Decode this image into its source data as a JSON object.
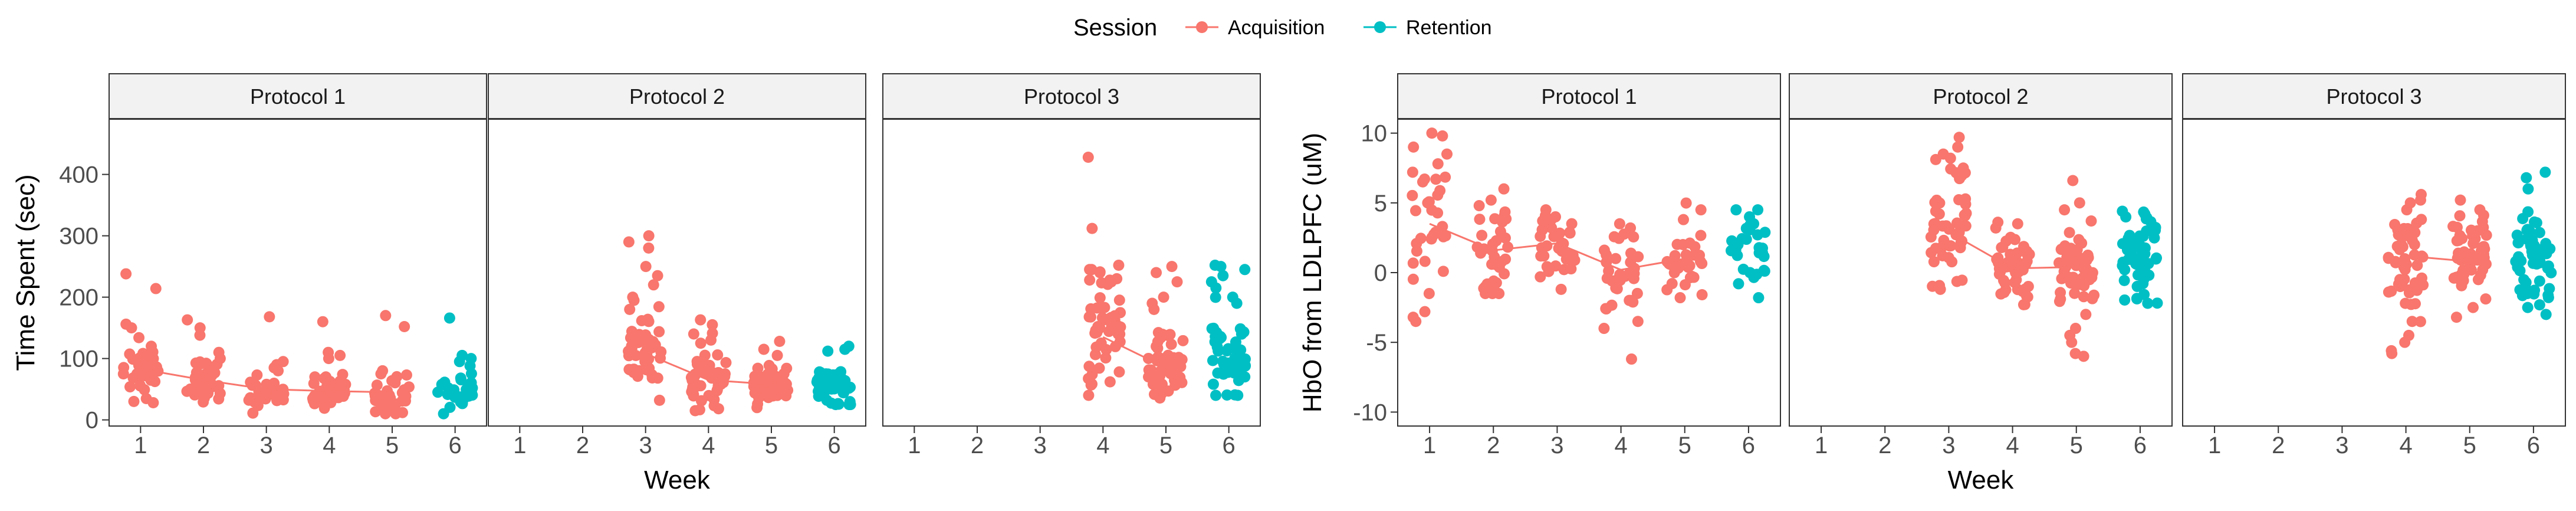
{
  "legend": {
    "title": "Session",
    "entries": [
      {
        "label": "Acquisition",
        "color": "#F8766D"
      },
      {
        "label": "Retention",
        "color": "#00BFC4"
      }
    ]
  },
  "chart_data": [
    {
      "type": "scatter",
      "ylabel": "Time Spent (sec)",
      "xlabel": "Week",
      "ylim": [
        -10,
        490
      ],
      "yticks": [
        "0",
        "100",
        "200",
        "300",
        "400"
      ],
      "ytick_values": [
        0,
        100,
        200,
        300,
        400
      ],
      "xticks": [
        "1",
        "2",
        "3",
        "4",
        "5",
        "6"
      ],
      "grid": false,
      "jitter_width": 0.28,
      "panels": [
        {
          "title": "Protocol 1",
          "groups": [
            {
              "week": 1,
              "session": "Acquisition",
              "center": 80,
              "spread": 22,
              "min": 20,
              "max": 240,
              "n": 34,
              "extras": [
                238,
                214,
                156,
                150,
                134,
                120,
                30,
                28
              ]
            },
            {
              "week": 2,
              "session": "Acquisition",
              "center": 65,
              "spread": 18,
              "min": 18,
              "max": 165,
              "n": 34,
              "extras": [
                163,
                150,
                138,
                110,
                100
              ]
            },
            {
              "week": 3,
              "session": "Acquisition",
              "center": 45,
              "spread": 15,
              "min": 10,
              "max": 170,
              "n": 34,
              "extras": [
                168,
                95,
                90,
                85,
                80
              ]
            },
            {
              "week": 4,
              "session": "Acquisition",
              "center": 45,
              "spread": 15,
              "min": 10,
              "max": 162,
              "n": 34,
              "extras": [
                160,
                110,
                105,
                100,
                70
              ]
            },
            {
              "week": 5,
              "session": "Acquisition",
              "center": 35,
              "spread": 15,
              "min": 10,
              "max": 172,
              "n": 32,
              "extras": [
                170,
                152,
                80,
                75
              ]
            },
            {
              "week": 6,
              "session": "Retention",
              "center": 45,
              "spread": 20,
              "min": 10,
              "max": 170,
              "n": 26,
              "extras": [
                166,
                105,
                100,
                95
              ]
            }
          ],
          "trend": {
            "weeks": [
              1,
              2,
              3,
              4,
              5
            ],
            "values": [
              83,
              65,
              50,
              47,
              45
            ]
          }
        },
        {
          "title": "Protocol 2",
          "groups": [
            {
              "week": 3,
              "session": "Acquisition",
              "center": 105,
              "spread": 30,
              "min": 25,
              "max": 305,
              "n": 48,
              "extras": [
                300,
                290,
                280,
                250,
                235,
                220,
                200,
                180
              ]
            },
            {
              "week": 4,
              "session": "Acquisition",
              "center": 65,
              "spread": 20,
              "min": 15,
              "max": 165,
              "n": 48,
              "extras": [
                163,
                155,
                140,
                130,
                125
              ]
            },
            {
              "week": 5,
              "session": "Acquisition",
              "center": 58,
              "spread": 15,
              "min": 20,
              "max": 130,
              "n": 48,
              "extras": [
                128,
                115,
                105
              ]
            },
            {
              "week": 6,
              "session": "Retention",
              "center": 55,
              "spread": 15,
              "min": 25,
              "max": 125,
              "n": 42,
              "extras": [
                120,
                115,
                112
              ]
            }
          ],
          "trend": {
            "weeks": [
              3,
              4,
              5
            ],
            "values": [
              108,
              65,
              58
            ]
          }
        },
        {
          "title": "Protocol 3",
          "groups": [
            {
              "week": 4,
              "session": "Acquisition",
              "center": 140,
              "spread": 45,
              "min": 40,
              "max": 430,
              "n": 52,
              "extras": [
                428,
                312,
                252,
                245,
                240,
                230,
                225
              ]
            },
            {
              "week": 5,
              "session": "Acquisition",
              "center": 85,
              "spread": 30,
              "min": 15,
              "max": 250,
              "n": 52,
              "extras": [
                250,
                240,
                225,
                200,
                190,
                180
              ]
            },
            {
              "week": 6,
              "session": "Retention",
              "center": 95,
              "spread": 35,
              "min": 40,
              "max": 255,
              "n": 46,
              "extras": [
                252,
                250,
                245,
                235,
                225,
                215,
                200,
                190
              ]
            }
          ],
          "trend": {
            "weeks": [
              4,
              5
            ],
            "values": [
              135,
              85
            ]
          }
        }
      ]
    },
    {
      "type": "scatter",
      "ylabel": "HbO from LDLPFC (uM)",
      "xlabel": "Week",
      "ylim": [
        -11,
        11
      ],
      "yticks": [
        "-10",
        "-5",
        "0",
        "5",
        "10"
      ],
      "ytick_values": [
        -10,
        -5,
        0,
        5,
        10
      ],
      "xticks": [
        "1",
        "2",
        "3",
        "4",
        "5",
        "6"
      ],
      "grid": false,
      "jitter_width": 0.28,
      "panels": [
        {
          "title": "Protocol 1",
          "groups": [
            {
              "week": 1,
              "session": "Acquisition",
              "center": 3,
              "spread": 2.5,
              "min": -3.5,
              "max": 10,
              "n": 28,
              "extras": [
                9.8,
                9.0,
                8.5,
                7.8,
                7.2,
                -2.8,
                -3.2,
                -1.5
              ]
            },
            {
              "week": 2,
              "session": "Acquisition",
              "center": 1.5,
              "spread": 1.8,
              "min": -1.5,
              "max": 6.5,
              "n": 32,
              "extras": [
                6.0,
                5.2,
                4.8,
                -1.0
              ]
            },
            {
              "week": 3,
              "session": "Acquisition",
              "center": 2,
              "spread": 1.3,
              "min": -1.5,
              "max": 4.5,
              "n": 32,
              "extras": [
                4.0,
                3.8,
                -1.2
              ]
            },
            {
              "week": 4,
              "session": "Acquisition",
              "center": 0.5,
              "spread": 1.5,
              "min": -6.5,
              "max": 3.5,
              "n": 32,
              "extras": [
                -6.2,
                -4.0,
                -3.5,
                -2.0,
                3.2
              ]
            },
            {
              "week": 5,
              "session": "Acquisition",
              "center": 0.8,
              "spread": 1.5,
              "min": -2,
              "max": 5,
              "n": 30,
              "extras": [
                4.5,
                3.8,
                -1.8
              ]
            },
            {
              "week": 6,
              "session": "Retention",
              "center": 1,
              "spread": 1.6,
              "min": -2,
              "max": 4.5,
              "n": 26,
              "extras": [
                4.0,
                3.5,
                -1.8
              ]
            }
          ],
          "trend": {
            "weeks": [
              1,
              2,
              3,
              4,
              5
            ],
            "values": [
              3.5,
              1.6,
              2.1,
              0.2,
              1.0
            ]
          }
        },
        {
          "title": "Protocol 2",
          "groups": [
            {
              "week": 3,
              "session": "Acquisition",
              "center": 3,
              "spread": 2,
              "min": -1.5,
              "max": 10,
              "n": 48,
              "extras": [
                9.7,
                9.0,
                8.5,
                8.2,
                7.5,
                -1.0
              ]
            },
            {
              "week": 4,
              "session": "Acquisition",
              "center": 0.3,
              "spread": 1.3,
              "min": -2.5,
              "max": 4,
              "n": 48,
              "extras": [
                3.5,
                3.2,
                -2.3
              ]
            },
            {
              "week": 5,
              "session": "Acquisition",
              "center": 0.5,
              "spread": 1.5,
              "min": -6.5,
              "max": 7,
              "n": 48,
              "extras": [
                6.6,
                5.0,
                4.5,
                -3.0,
                -4.5,
                -5.0,
                -5.8,
                -6.0,
                -4.0
              ]
            },
            {
              "week": 6,
              "session": "Retention",
              "center": 1,
              "spread": 1.6,
              "min": -2.5,
              "max": 4.5,
              "n": 58,
              "extras": [
                4.4,
                4.2,
                -2.2
              ]
            }
          ],
          "trend": {
            "weeks": [
              3,
              4,
              5
            ],
            "values": [
              2.9,
              0.3,
              0.4
            ]
          }
        },
        {
          "title": "Protocol 3",
          "groups": [
            {
              "week": 4,
              "session": "Acquisition",
              "center": 1.2,
              "spread": 1.8,
              "min": -6,
              "max": 6,
              "n": 50,
              "extras": [
                5.6,
                5.2,
                5.0,
                -4.5,
                -5.0,
                -5.6,
                -5.8,
                -3.5
              ]
            },
            {
              "week": 5,
              "session": "Acquisition",
              "center": 0.8,
              "spread": 1.4,
              "min": -3.5,
              "max": 5.5,
              "n": 50,
              "extras": [
                5.2,
                4.5,
                -3.2,
                -2.5
              ]
            },
            {
              "week": 6,
              "session": "Retention",
              "center": 0.8,
              "spread": 1.6,
              "min": -3,
              "max": 7.5,
              "n": 52,
              "extras": [
                7.2,
                6.8,
                6.0,
                -3.0,
                -2.5
              ]
            }
          ],
          "trend": {
            "weeks": [
              4,
              5
            ],
            "values": [
              1.2,
              0.8
            ]
          }
        }
      ]
    }
  ]
}
